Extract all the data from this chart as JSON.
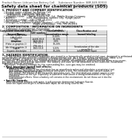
{
  "bg_color": "#ffffff",
  "header_top_left": "Product Name: Lithium Ion Battery Cell",
  "header_top_right": "Substance Number: SBR-049-00910\nEstablished / Revision: Dec.7.2016",
  "main_title": "Safety data sheet for chemical products (SDS)",
  "section1_title": "1. PRODUCT AND COMPANY IDENTIFICATION",
  "section1_lines": [
    "  • Product name: Lithium Ion Battery Cell",
    "  • Product code: Cylindrical-type cell",
    "      (IHR18650U, IHR18650L, IHR18650A)",
    "  • Company name:     Sanyo Electric Co., Ltd.  Mobile Energy Company",
    "  • Address:              2001  Kamitanaka, Sumoto City, Hyogo, Japan",
    "  • Telephone number:  +81-(799)-26-4111",
    "  • Fax number:  +81-(799)-26-4129",
    "  • Emergency telephone number (daytime): +81-799-26-2662",
    "                                        (Night and holiday): +81-799-26-4101"
  ],
  "section2_title": "2. COMPOSITION / INFORMATION ON INGREDIENTS",
  "section2_sub": "  • Substance or preparation: Preparation",
  "section2_sub2": "  • Information about the chemical nature of product:",
  "table_headers": [
    "Component chemical name /\nSeveral Names",
    "CAS number",
    "Concentration /\nConcentration range",
    "Classification and\nhazard labeling"
  ],
  "table_rows": [
    [
      "Lithium cobalt oxide\n(LiMn/CoO2)",
      "-",
      "30-60%",
      "-"
    ],
    [
      "Iron",
      "26438-99-8",
      "10-30%",
      "-"
    ],
    [
      "Aluminium",
      "7429-90-5",
      "2-6%",
      "-"
    ],
    [
      "Graphite\n(Flake or graphite-1)\n(Air filter graphite-1)",
      "7782-42-5\n7782-44-2",
      "10-20%",
      "-"
    ],
    [
      "Copper",
      "7440-50-8",
      "5-15%",
      "Sensitization of the skin\ngroup No.2"
    ],
    [
      "Organic electrolyte",
      "-",
      "10-20%",
      "Inflammable liquid"
    ]
  ],
  "section3_title": "3. HAZARDS IDENTIFICATION",
  "section3_lines": [
    "   For the battery cell, chemical materials are stored in a hermetically sealed metal case, designed to withstand",
    "temperatures of characteristic-conditions during normal use. As a result, during normal use, there is no",
    "physical danger of ignition or explosion and thermal danger of hazardous materials leakage.",
    "   However, if exposed to a fire, added mechanical shocks, decomposed, shorted internal wires may cause,",
    "the gas release vent will be operated. The battery cell case will be breached at fire-extreme, hazardous",
    "materials may be released.",
    "   Moreover, if heated strongly by the surrounding fire, soot gas may be emitted."
  ],
  "section3_bullet1": "  • Most important hazard and effects:",
  "section3_sub_human": "      Human health effects:",
  "section3_sub_lines": [
    "          Inhalation: The release of the electrolyte has an anaesthesia action and stimulates a respiratory tract.",
    "          Skin contact: The release of the electrolyte stimulates a skin. The electrolyte skin contact causes a",
    "          sore and stimulation on the skin.",
    "          Eye contact: The release of the electrolyte stimulates eyes. The electrolyte eye contact causes a sore",
    "          and stimulation on the eye. Especially, a substance that causes a strong inflammation of the eyes is",
    "          contained.",
    "          Environmental effects: Since a battery cell remains in the environment, do not throw out it into the",
    "          environment."
  ],
  "section3_bullet2": "  • Specific hazards:",
  "section3_specific": [
    "      If the electrolyte contacts with water, it will generate detrimental hydrogen fluoride.",
    "      Since the liquid electrolyte is inflammable liquid, do not bring close to fire."
  ]
}
